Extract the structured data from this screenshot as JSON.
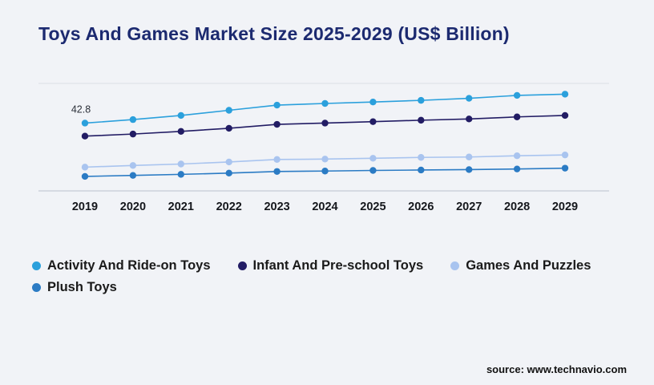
{
  "title": "Toys And Games Market Size 2025-2029 (US$ Billion)",
  "source": "source: www.technavio.com",
  "chart_data": {
    "type": "line",
    "title": "Toys And Games Market Size 2025-2029 (US$ Billion)",
    "x": [
      2019,
      2020,
      2021,
      2022,
      2023,
      2024,
      2025,
      2026,
      2027,
      2028,
      2029
    ],
    "series": [
      {
        "name": "Activity And Ride-on Toys",
        "color": "#2ba0dc",
        "values": [
          42.8,
          44.5,
          46.5,
          49.0,
          51.5,
          52.3,
          53.0,
          53.8,
          54.8,
          56.2,
          56.8
        ]
      },
      {
        "name": "Infant And Pre-school Toys",
        "color": "#221c64",
        "values": [
          36.5,
          37.5,
          38.8,
          40.3,
          42.2,
          42.8,
          43.5,
          44.2,
          44.8,
          45.8,
          46.5
        ]
      },
      {
        "name": "Games And Puzzles",
        "color": "#a9c4ef",
        "values": [
          21.5,
          22.3,
          23.0,
          24.0,
          25.2,
          25.4,
          25.8,
          26.2,
          26.4,
          27.0,
          27.4
        ]
      },
      {
        "name": "Plush Toys",
        "color": "#2b7bc4",
        "values": [
          17.0,
          17.5,
          18.0,
          18.6,
          19.4,
          19.6,
          19.9,
          20.1,
          20.3,
          20.6,
          21.0
        ]
      }
    ],
    "annotation": {
      "series_index": 0,
      "x_index": 0,
      "label": "42.8"
    },
    "xlabel": "",
    "ylabel": "",
    "ylim": [
      10,
      62
    ],
    "grid": "horizontal-top-bottom",
    "legend_position": "bottom"
  }
}
